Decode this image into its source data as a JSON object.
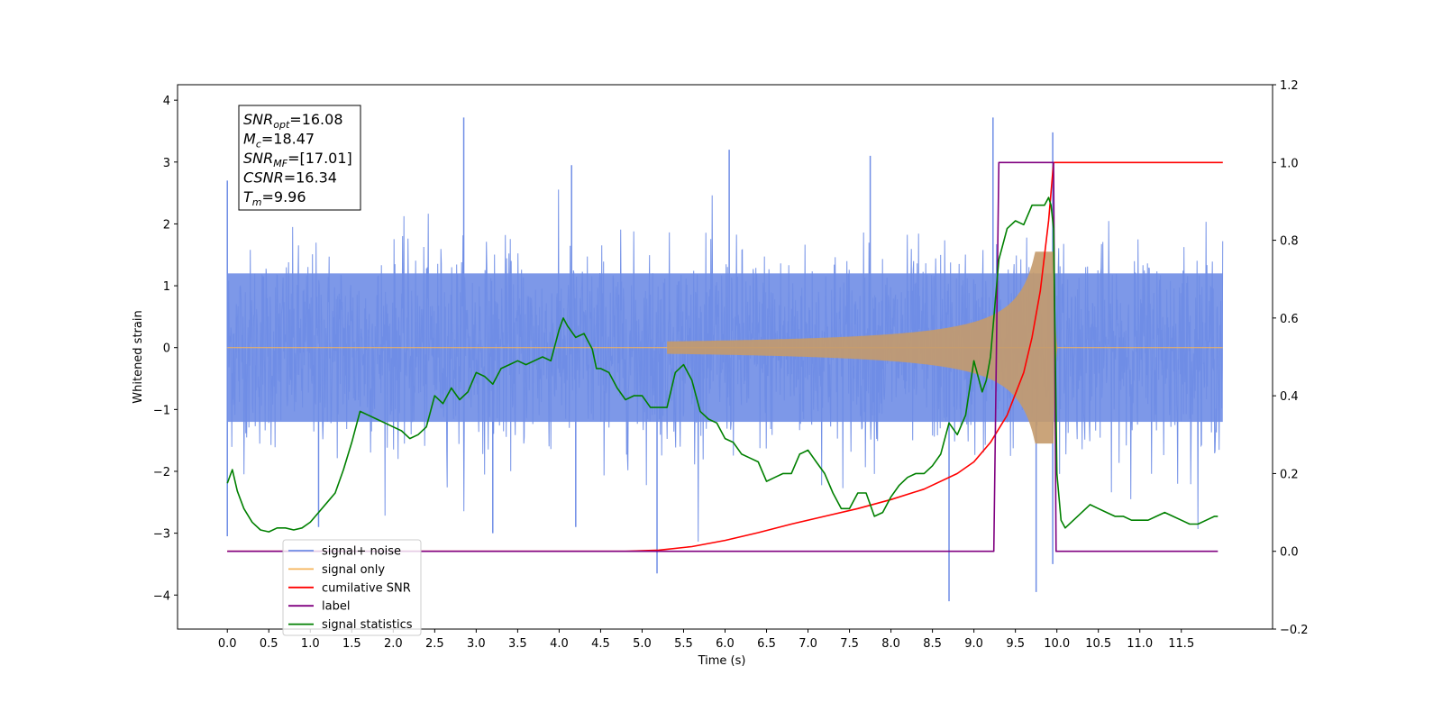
{
  "chart_data": {
    "type": "line",
    "xlabel": "Time (s)",
    "ylabel_left": "Whitened strain",
    "ylabel_right": "",
    "xlim": [
      -0.6,
      12.6
    ],
    "ylim_left": [
      -4.55,
      4.25
    ],
    "ylim_right": [
      -0.2,
      1.2
    ],
    "x_ticks": [
      0.0,
      0.5,
      1.0,
      1.5,
      2.0,
      2.5,
      3.0,
      3.5,
      4.0,
      4.5,
      5.0,
      5.5,
      6.0,
      6.5,
      7.0,
      7.5,
      8.0,
      8.5,
      9.0,
      9.5,
      10.0,
      10.5,
      11.0,
      11.5
    ],
    "x_tick_labels": [
      "0.0",
      "0.5",
      "1.0",
      "1.5",
      "2.0",
      "2.5",
      "3.0",
      "3.5",
      "4.0",
      "4.5",
      "5.0",
      "5.5",
      "6.0",
      "6.5",
      "7.0",
      "7.5",
      "8.0",
      "8.5",
      "9.0",
      "9.5",
      "10.0",
      "10.5",
      "11.0",
      "11.5"
    ],
    "y_ticks_left": [
      -4,
      -3,
      -2,
      -1,
      0,
      1,
      2,
      3,
      4
    ],
    "y_tick_labels_left": [
      "−4",
      "−3",
      "−2",
      "−1",
      "0",
      "1",
      "2",
      "3",
      "4"
    ],
    "y_ticks_right": [
      -0.2,
      0.0,
      0.2,
      0.4,
      0.6,
      0.8,
      1.0,
      1.2
    ],
    "y_tick_labels_right": [
      "−0.2",
      "0.0",
      "0.2",
      "0.4",
      "0.6",
      "0.8",
      "1.0",
      "1.2"
    ],
    "grid": false,
    "legend_position": "lower-left",
    "colors": {
      "signal_noise": "#6f8de6",
      "signal_only": "#f5b45a",
      "signal_only_envelope": "#c49a6c",
      "cumulative_snr": "#ff0000",
      "label": "#800080",
      "signal_statistics": "#008000"
    },
    "series": [
      {
        "name": "signal+ noise",
        "axis": "left",
        "description_kind": "noise-band",
        "x_range": [
          0.0,
          12.0
        ],
        "band_typical": [
          -1.6,
          1.6
        ],
        "spikes": [
          [
            0.0,
            2.7
          ],
          [
            0.0,
            -3.05
          ],
          [
            2.85,
            3.72
          ],
          [
            5.18,
            -3.65
          ],
          [
            9.23,
            3.72
          ],
          [
            8.7,
            -4.1
          ],
          [
            9.75,
            -3.95
          ],
          [
            9.95,
            3.48
          ],
          [
            9.95,
            -3.5
          ],
          [
            4.15,
            2.95
          ],
          [
            6.05,
            3.2
          ],
          [
            7.75,
            3.1
          ],
          [
            1.1,
            -2.9
          ],
          [
            3.2,
            -3.0
          ],
          [
            4.2,
            -2.9
          ]
        ]
      },
      {
        "name": "signal only",
        "axis": "left",
        "description_kind": "chirp",
        "chirp_start": 5.3,
        "chirp_end": 9.96,
        "max_amplitude": 1.55
      },
      {
        "name": "cumilative SNR",
        "axis": "right",
        "x": [
          0.0,
          4.8,
          5.2,
          5.6,
          6.0,
          6.4,
          6.8,
          7.2,
          7.6,
          8.0,
          8.4,
          8.8,
          9.0,
          9.2,
          9.4,
          9.6,
          9.7,
          9.8,
          9.9,
          9.96,
          9.97,
          12.0
        ],
        "y": [
          0.0,
          0.0,
          0.003,
          0.012,
          0.028,
          0.048,
          0.07,
          0.09,
          0.11,
          0.133,
          0.16,
          0.2,
          0.23,
          0.28,
          0.35,
          0.46,
          0.55,
          0.67,
          0.85,
          1.0,
          1.0,
          1.0
        ]
      },
      {
        "name": "label",
        "axis": "right",
        "x": [
          0.0,
          9.24,
          9.3,
          9.96,
          9.99,
          11.94
        ],
        "y": [
          0.0,
          0.0,
          1.0,
          1.0,
          0.0,
          0.0
        ]
      },
      {
        "name": "signal statistics",
        "axis": "right",
        "x": [
          0.0,
          0.06,
          0.12,
          0.2,
          0.3,
          0.4,
          0.5,
          0.6,
          0.7,
          0.8,
          0.9,
          1.0,
          1.1,
          1.2,
          1.3,
          1.4,
          1.5,
          1.6,
          1.7,
          1.8,
          1.9,
          2.0,
          2.1,
          2.2,
          2.3,
          2.4,
          2.5,
          2.6,
          2.7,
          2.8,
          2.9,
          3.0,
          3.1,
          3.2,
          3.3,
          3.4,
          3.5,
          3.6,
          3.7,
          3.8,
          3.9,
          4.0,
          4.05,
          4.1,
          4.2,
          4.3,
          4.4,
          4.45,
          4.5,
          4.6,
          4.7,
          4.8,
          4.9,
          5.0,
          5.1,
          5.2,
          5.3,
          5.4,
          5.5,
          5.6,
          5.7,
          5.8,
          5.9,
          6.0,
          6.1,
          6.2,
          6.3,
          6.4,
          6.5,
          6.6,
          6.7,
          6.8,
          6.9,
          7.0,
          7.1,
          7.2,
          7.3,
          7.4,
          7.5,
          7.6,
          7.7,
          7.8,
          7.9,
          8.0,
          8.1,
          8.2,
          8.3,
          8.4,
          8.5,
          8.6,
          8.7,
          8.8,
          8.9,
          9.0,
          9.1,
          9.15,
          9.2,
          9.3,
          9.4,
          9.5,
          9.6,
          9.7,
          9.75,
          9.8,
          9.85,
          9.9,
          9.93,
          9.96,
          10.0,
          10.05,
          10.1,
          10.2,
          10.3,
          10.4,
          10.5,
          10.6,
          10.7,
          10.8,
          10.9,
          11.0,
          11.1,
          11.2,
          11.3,
          11.4,
          11.5,
          11.6,
          11.7,
          11.8,
          11.9,
          11.94
        ],
        "y": [
          0.175,
          0.21,
          0.155,
          0.11,
          0.075,
          0.055,
          0.05,
          0.06,
          0.06,
          0.055,
          0.06,
          0.075,
          0.1,
          0.125,
          0.15,
          0.21,
          0.28,
          0.36,
          0.35,
          0.34,
          0.33,
          0.32,
          0.31,
          0.29,
          0.3,
          0.32,
          0.4,
          0.38,
          0.42,
          0.39,
          0.41,
          0.46,
          0.45,
          0.43,
          0.47,
          0.48,
          0.49,
          0.48,
          0.49,
          0.5,
          0.49,
          0.57,
          0.6,
          0.58,
          0.55,
          0.56,
          0.52,
          0.47,
          0.47,
          0.46,
          0.42,
          0.39,
          0.4,
          0.4,
          0.37,
          0.37,
          0.37,
          0.46,
          0.48,
          0.44,
          0.36,
          0.34,
          0.33,
          0.29,
          0.28,
          0.25,
          0.24,
          0.23,
          0.18,
          0.19,
          0.2,
          0.2,
          0.25,
          0.26,
          0.23,
          0.2,
          0.15,
          0.11,
          0.11,
          0.15,
          0.15,
          0.09,
          0.1,
          0.14,
          0.17,
          0.19,
          0.2,
          0.2,
          0.22,
          0.25,
          0.33,
          0.3,
          0.35,
          0.49,
          0.41,
          0.44,
          0.5,
          0.75,
          0.83,
          0.85,
          0.84,
          0.89,
          0.89,
          0.89,
          0.89,
          0.91,
          0.89,
          0.83,
          0.2,
          0.08,
          0.06,
          0.08,
          0.1,
          0.12,
          0.11,
          0.1,
          0.09,
          0.09,
          0.08,
          0.08,
          0.08,
          0.09,
          0.1,
          0.09,
          0.08,
          0.07,
          0.07,
          0.08,
          0.09,
          0.09
        ]
      }
    ],
    "annotation_box": {
      "lines": [
        {
          "base": "SNR",
          "sub": "opt",
          "value": "=16.08"
        },
        {
          "base": "M",
          "sub": "c",
          "value": "=18.47"
        },
        {
          "base": "SNR",
          "sub": "MF",
          "value": "=[17.01]"
        },
        {
          "base": "CSNR",
          "sub": "",
          "value": "=16.34"
        },
        {
          "base": "T",
          "sub": "m",
          "value": "=9.96"
        }
      ]
    },
    "legend": [
      {
        "label": "signal+ noise",
        "color": "#6f8de6"
      },
      {
        "label": "signal only",
        "color": "#f5b45a"
      },
      {
        "label": "cumilative SNR",
        "color": "#ff0000"
      },
      {
        "label": "label",
        "color": "#800080"
      },
      {
        "label": "signal statistics",
        "color": "#008000"
      }
    ]
  }
}
